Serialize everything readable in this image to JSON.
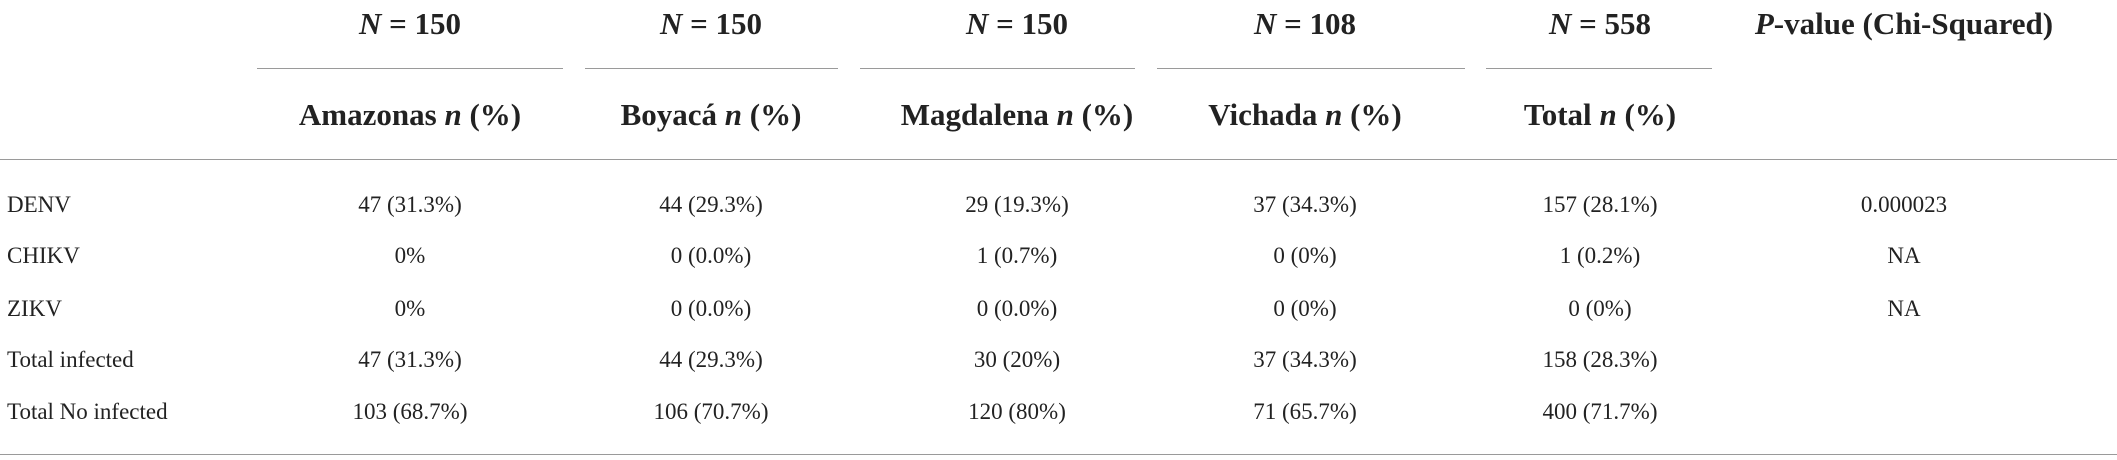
{
  "table": {
    "groups": [
      {
        "count": [
          "N",
          "= 150"
        ],
        "label": [
          "Amazonas",
          "n",
          "(%)"
        ]
      },
      {
        "count": [
          "N",
          "= 150"
        ],
        "label": [
          "Boyacá",
          "n",
          "(%)"
        ]
      },
      {
        "count": [
          "N",
          "= 150"
        ],
        "label": [
          "Magdalena",
          "n",
          "(%)"
        ]
      },
      {
        "count": [
          "N",
          "= 108"
        ],
        "label": [
          "Vichada",
          "n",
          "(%)"
        ]
      },
      {
        "count": [
          "N",
          "= 558"
        ],
        "label": [
          "Total",
          "n",
          "(%)"
        ]
      }
    ],
    "pvalue_header": [
      "P",
      "-value (Chi-Squared)"
    ],
    "rows": [
      [
        "DENV",
        "47 (31.3%)",
        "44 (29.3%)",
        "29 (19.3%)",
        "37 (34.3%)",
        "157 (28.1%)",
        "0.000023"
      ],
      [
        "CHIKV",
        "0%",
        "0 (0.0%)",
        "1 (0.7%)",
        "0 (0%)",
        "1 (0.2%)",
        "NA"
      ],
      [
        "ZIKV",
        "0%",
        "0 (0.0%)",
        "0 (0.0%)",
        "0 (0%)",
        "0 (0%)",
        "NA"
      ],
      [
        "Total infected",
        "47 (31.3%)",
        "44 (29.3%)",
        "30 (20%)",
        "37 (34.3%)",
        "158 (28.3%)"
      ],
      [
        "Total No infected",
        "103 (68.7%)",
        "106 (70.7%)",
        "120 (80%)",
        "71 (65.7%)",
        "400 (71.7%)"
      ]
    ]
  }
}
